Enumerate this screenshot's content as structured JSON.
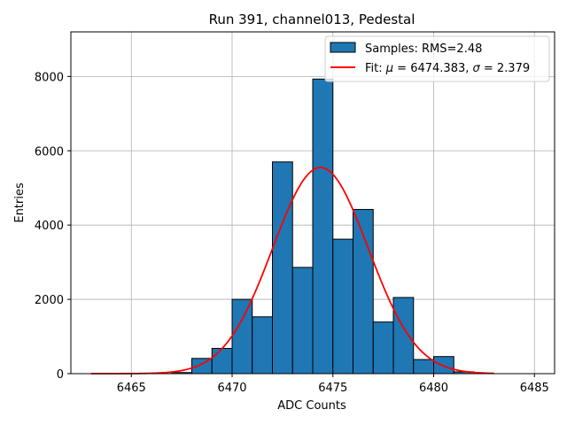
{
  "chart_data": {
    "type": "bar",
    "title": "Run 391, channel013, Pedestal",
    "xlabel": "ADC Counts",
    "ylabel": "Entries",
    "xlim": [
      6462.0,
      6486.0
    ],
    "ylim": [
      0,
      9200
    ],
    "x_ticks": [
      6465,
      6470,
      6475,
      6480,
      6485
    ],
    "y_ticks": [
      0,
      2000,
      4000,
      6000,
      8000
    ],
    "grid": true,
    "legend_position": "top-right",
    "colors": {
      "bars": "#1f77b4",
      "bar_edge": "#000000",
      "fit": "#ff0000",
      "grid": "#b0b0b0"
    },
    "series": [
      {
        "name": "Samples: RMS=2.48",
        "type": "histogram",
        "bin_width": 1,
        "bin_starts": [
          6467,
          6468,
          6469,
          6470,
          6471,
          6472,
          6473,
          6474,
          6475,
          6476,
          6477,
          6478,
          6479,
          6480,
          6481
        ],
        "values": [
          30,
          410,
          680,
          2000,
          1530,
          5700,
          2860,
          7930,
          3620,
          4420,
          1390,
          2050,
          380,
          460,
          50
        ]
      },
      {
        "name_prefix": "Fit: ",
        "name_mu_symbol": "μ",
        "name_mu_value": " = 6474.383, ",
        "name_sigma_symbol": "σ",
        "name_sigma_value": " = 2.379",
        "type": "gaussian-fit",
        "mu": 6474.383,
        "sigma": 2.379,
        "amplitude": 5550,
        "x_range": [
          6463,
          6483
        ]
      }
    ]
  }
}
